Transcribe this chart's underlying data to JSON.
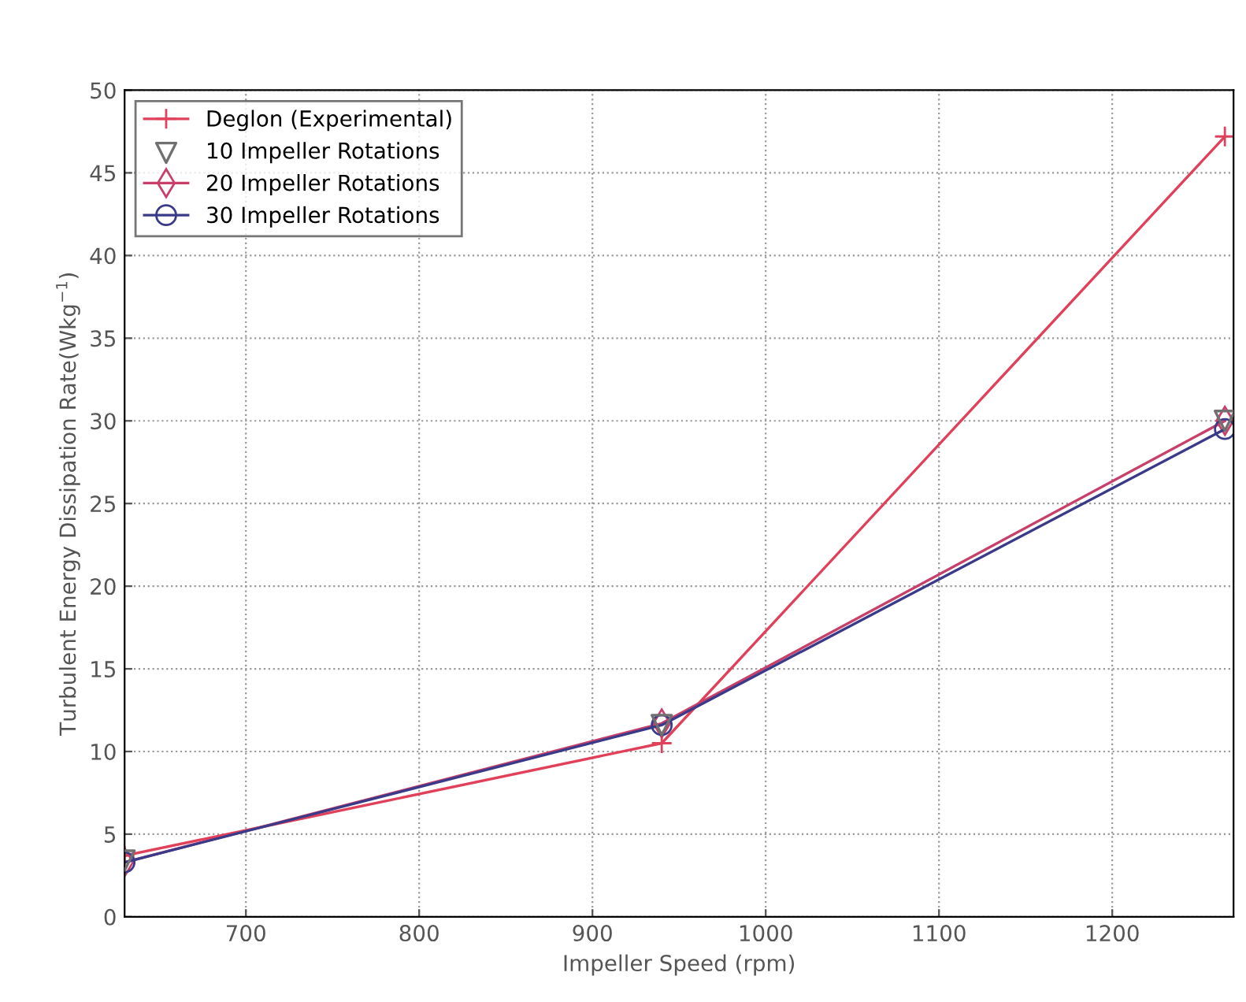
{
  "chart_data": {
    "type": "line",
    "xlabel": "Impeller Speed (rpm)",
    "ylabel": "Turbulent Energy Dissipation Rate(Wkg$^{−1}$)",
    "x": [
      630,
      940,
      1265
    ],
    "series": [
      {
        "name": "Deglon (Experimental)",
        "color": "#e0405a",
        "values": [
          3.7,
          10.5,
          47.2
        ],
        "marker": "cross",
        "line_style": "solid"
      },
      {
        "name": "10 Impeller Rotations",
        "type": "scatter",
        "color": "#707070",
        "values": [
          3.4,
          11.6,
          30.0
        ],
        "marker": "triangle"
      },
      {
        "name": "20 Impeller Rotations",
        "color": "#c8406a",
        "values": [
          3.3,
          11.7,
          30.0
        ],
        "marker": "diamond",
        "line_style": "solid"
      },
      {
        "name": "30 Impeller Rotations",
        "color": "#3a3a8a",
        "values": [
          3.3,
          11.6,
          29.5
        ],
        "marker": "circle",
        "line_style": "solid"
      }
    ],
    "xlim": [
      630,
      1270
    ],
    "xticks": [
      700,
      800,
      900,
      1000,
      1100,
      1200
    ],
    "ylim": [
      0,
      50
    ],
    "yticks": [
      0,
      5,
      10,
      15,
      20,
      25,
      30,
      35,
      40,
      45,
      50
    ],
    "grid": true,
    "legend": "top left"
  }
}
